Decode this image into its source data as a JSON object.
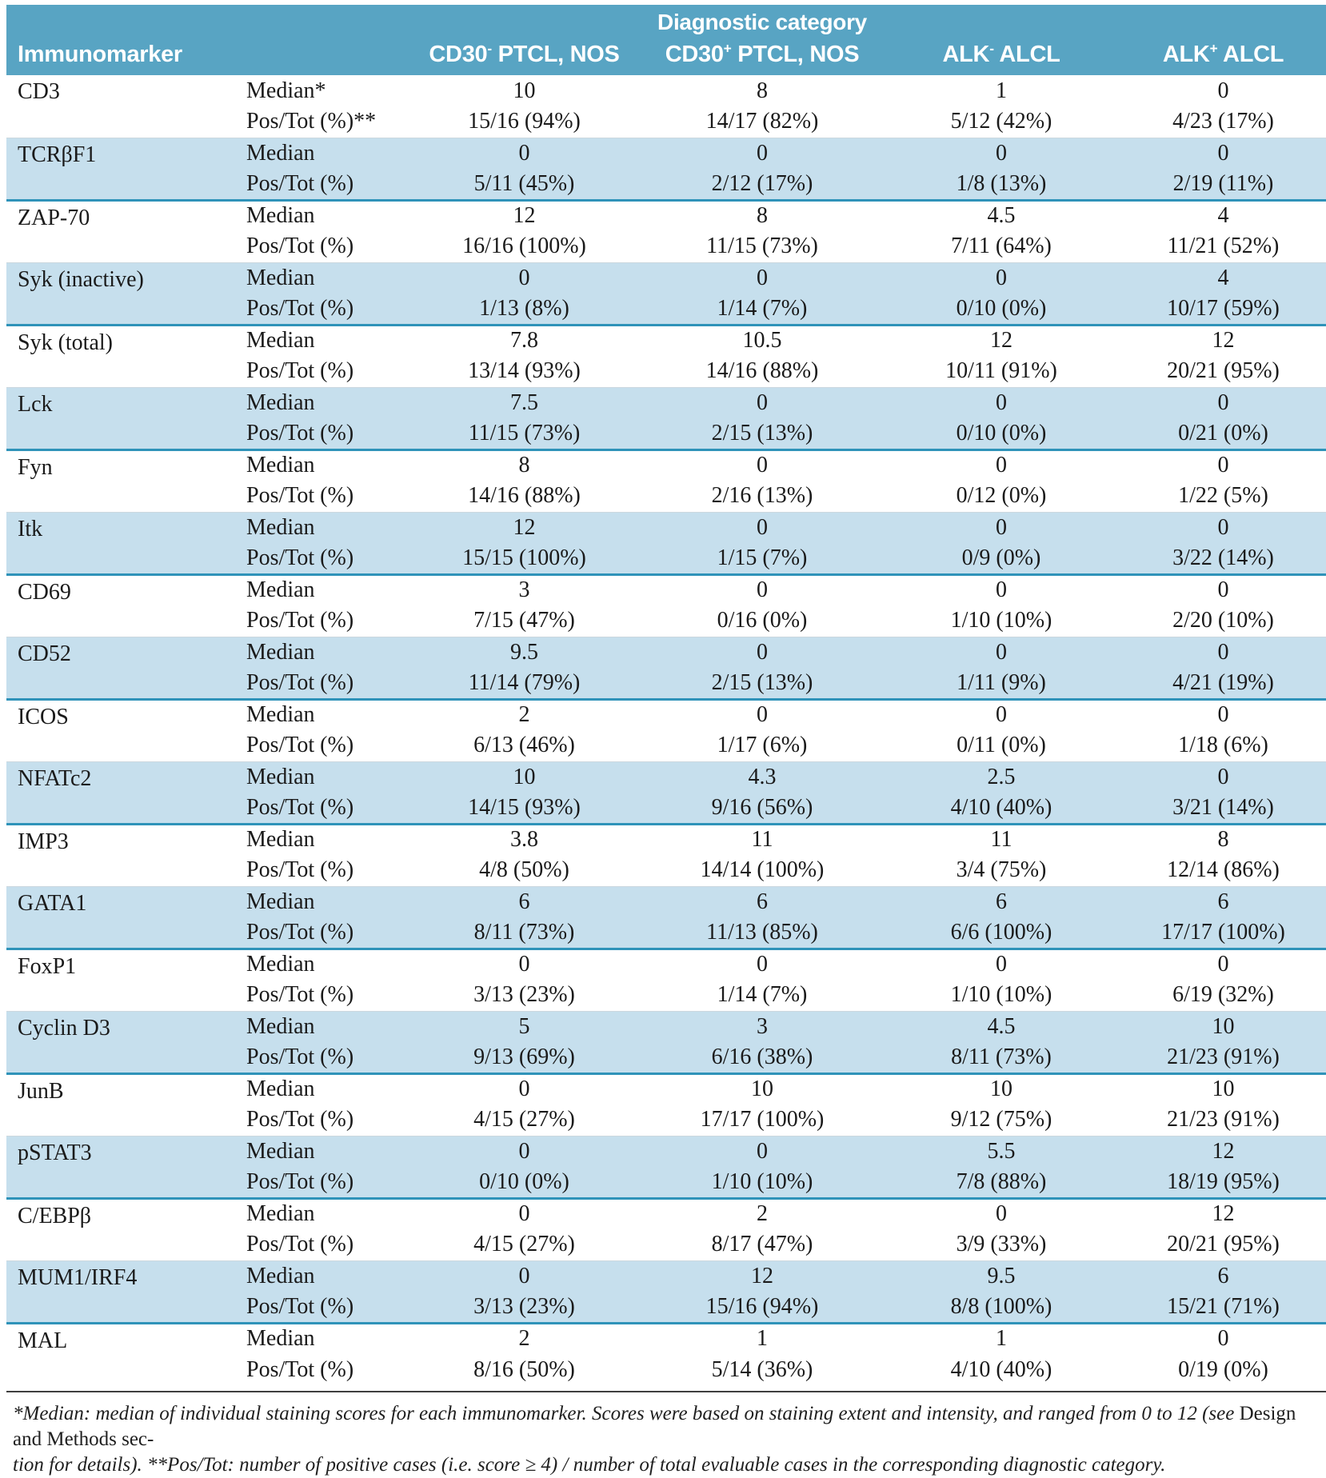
{
  "colors": {
    "header_bg": "#58a4c3",
    "alt_row_bg": "#c6dfed",
    "separator_line": "#2f93b9",
    "footnote_rule": "#3f3f3f",
    "header_text": "#ffffff",
    "body_text": "#1a1a1a"
  },
  "header": {
    "immunomarker_label": "Immunomarker",
    "diagnostic_category_label": "Diagnostic category",
    "columns": [
      {
        "pre": "CD30",
        "sup": "-",
        "post": " PTCL, NOS"
      },
      {
        "pre": "CD30",
        "sup": "+",
        "post": " PTCL, NOS"
      },
      {
        "pre": "ALK",
        "sup": "-",
        "post": " ALCL"
      },
      {
        "pre": "ALK",
        "sup": "+",
        "post": " ALCL"
      }
    ]
  },
  "rows": [
    {
      "marker": "CD3",
      "median_label": "Median*",
      "postot_label": "Pos/Tot (%)**",
      "median": [
        "10",
        "8",
        "1",
        "0"
      ],
      "postot": [
        "15/16 (94%)",
        "14/17 (82%)",
        "5/12 (42%)",
        "4/23 (17%)"
      ]
    },
    {
      "marker": "TCRβF1",
      "median_label": "Median",
      "postot_label": "Pos/Tot (%)",
      "median": [
        "0",
        "0",
        "0",
        "0"
      ],
      "postot": [
        "5/11 (45%)",
        "2/12 (17%)",
        "1/8 (13%)",
        "2/19 (11%)"
      ]
    },
    {
      "marker": "ZAP-70",
      "median_label": "Median",
      "postot_label": "Pos/Tot (%)",
      "median": [
        "12",
        "8",
        "4.5",
        "4"
      ],
      "postot": [
        "16/16 (100%)",
        "11/15 (73%)",
        "7/11 (64%)",
        "11/21 (52%)"
      ]
    },
    {
      "marker": "Syk (inactive)",
      "median_label": "Median",
      "postot_label": "Pos/Tot (%)",
      "median": [
        "0",
        "0",
        "0",
        "4"
      ],
      "postot": [
        "1/13 (8%)",
        "1/14 (7%)",
        "0/10 (0%)",
        "10/17 (59%)"
      ]
    },
    {
      "marker": "Syk (total)",
      "median_label": "Median",
      "postot_label": "Pos/Tot (%)",
      "median": [
        "7.8",
        "10.5",
        "12",
        "12"
      ],
      "postot": [
        "13/14 (93%)",
        "14/16 (88%)",
        "10/11 (91%)",
        "20/21 (95%)"
      ]
    },
    {
      "marker": "Lck",
      "median_label": "Median",
      "postot_label": "Pos/Tot (%)",
      "median": [
        "7.5",
        "0",
        "0",
        "0"
      ],
      "postot": [
        "11/15 (73%)",
        "2/15 (13%)",
        "0/10 (0%)",
        "0/21 (0%)"
      ]
    },
    {
      "marker": "Fyn",
      "median_label": "Median",
      "postot_label": "Pos/Tot (%)",
      "median": [
        "8",
        "0",
        "0",
        "0"
      ],
      "postot": [
        "14/16 (88%)",
        "2/16 (13%)",
        "0/12 (0%)",
        "1/22 (5%)"
      ]
    },
    {
      "marker": "Itk",
      "median_label": "Median",
      "postot_label": "Pos/Tot (%)",
      "median": [
        "12",
        "0",
        "0",
        "0"
      ],
      "postot": [
        "15/15 (100%)",
        "1/15 (7%)",
        "0/9 (0%)",
        "3/22 (14%)"
      ]
    },
    {
      "marker": "CD69",
      "median_label": "Median",
      "postot_label": "Pos/Tot (%)",
      "median": [
        "3",
        "0",
        "0",
        "0"
      ],
      "postot": [
        "7/15 (47%)",
        "0/16 (0%)",
        "1/10 (10%)",
        "2/20 (10%)"
      ]
    },
    {
      "marker": "CD52",
      "median_label": "Median",
      "postot_label": "Pos/Tot (%)",
      "median": [
        "9.5",
        "0",
        "0",
        "0"
      ],
      "postot": [
        "11/14 (79%)",
        "2/15 (13%)",
        "1/11 (9%)",
        "4/21 (19%)"
      ]
    },
    {
      "marker": "ICOS",
      "median_label": "Median",
      "postot_label": "Pos/Tot (%)",
      "median": [
        "2",
        "0",
        "0",
        "0"
      ],
      "postot": [
        "6/13 (46%)",
        "1/17 (6%)",
        "0/11 (0%)",
        "1/18 (6%)"
      ]
    },
    {
      "marker": "NFATc2",
      "median_label": "Median",
      "postot_label": "Pos/Tot (%)",
      "median": [
        "10",
        "4.3",
        "2.5",
        "0"
      ],
      "postot": [
        "14/15 (93%)",
        "9/16 (56%)",
        "4/10 (40%)",
        "3/21 (14%)"
      ]
    },
    {
      "marker": "IMP3",
      "median_label": "Median",
      "postot_label": "Pos/Tot (%)",
      "median": [
        "3.8",
        "11",
        "11",
        "8"
      ],
      "postot": [
        "4/8 (50%)",
        "14/14 (100%)",
        "3/4 (75%)",
        "12/14 (86%)"
      ]
    },
    {
      "marker": "GATA1",
      "median_label": "Median",
      "postot_label": "Pos/Tot (%)",
      "median": [
        "6",
        "6",
        "6",
        "6"
      ],
      "postot": [
        "8/11 (73%)",
        "11/13 (85%)",
        "6/6 (100%)",
        "17/17 (100%)"
      ]
    },
    {
      "marker": "FoxP1",
      "median_label": "Median",
      "postot_label": "Pos/Tot (%)",
      "median": [
        "0",
        "0",
        "0",
        "0"
      ],
      "postot": [
        "3/13 (23%)",
        "1/14 (7%)",
        "1/10 (10%)",
        "6/19 (32%)"
      ]
    },
    {
      "marker": "Cyclin D3",
      "median_label": "Median",
      "postot_label": "Pos/Tot (%)",
      "median": [
        "5",
        "3",
        "4.5",
        "10"
      ],
      "postot": [
        "9/13 (69%)",
        "6/16 (38%)",
        "8/11 (73%)",
        "21/23 (91%)"
      ]
    },
    {
      "marker": "JunB",
      "median_label": "Median",
      "postot_label": "Pos/Tot (%)",
      "median": [
        "0",
        "10",
        "10",
        "10"
      ],
      "postot": [
        "4/15 (27%)",
        "17/17 (100%)",
        "9/12 (75%)",
        "21/23 (91%)"
      ]
    },
    {
      "marker": "pSTAT3",
      "median_label": "Median",
      "postot_label": "Pos/Tot (%)",
      "median": [
        "0",
        "0",
        "5.5",
        "12"
      ],
      "postot": [
        "0/10 (0%)",
        "1/10 (10%)",
        "7/8 (88%)",
        "18/19 (95%)"
      ]
    },
    {
      "marker": "C/EBPβ",
      "median_label": "Median",
      "postot_label": "Pos/Tot (%)",
      "median": [
        "0",
        "2",
        "0",
        "12"
      ],
      "postot": [
        "4/15 (27%)",
        "8/17 (47%)",
        "3/9 (33%)",
        "20/21 (95%)"
      ]
    },
    {
      "marker": "MUM1/IRF4",
      "median_label": "Median",
      "postot_label": "Pos/Tot (%)",
      "median": [
        "0",
        "12",
        "9.5",
        "6"
      ],
      "postot": [
        "3/13 (23%)",
        "15/16 (94%)",
        "8/8 (100%)",
        "15/21 (71%)"
      ]
    },
    {
      "marker": "MAL",
      "median_label": "Median",
      "postot_label": "Pos/Tot (%)",
      "median": [
        "2",
        "1",
        "1",
        "0"
      ],
      "postot": [
        "8/16 (50%)",
        "5/14 (36%)",
        "4/10 (40%)",
        "0/19 (0%)"
      ]
    }
  ],
  "footnote": {
    "line1_italic": "*Median: median of individual staining scores for each immunomarker. Scores were based on staining extent and intensity, and ranged from 0 to 12 (see ",
    "line1_roman": "Design and Methods sec-",
    "line2_italic": "tion for details). **Pos/Tot: number of positive cases (i.e. score ≥ 4) / number of total evaluable cases in the corresponding diagnostic category."
  }
}
